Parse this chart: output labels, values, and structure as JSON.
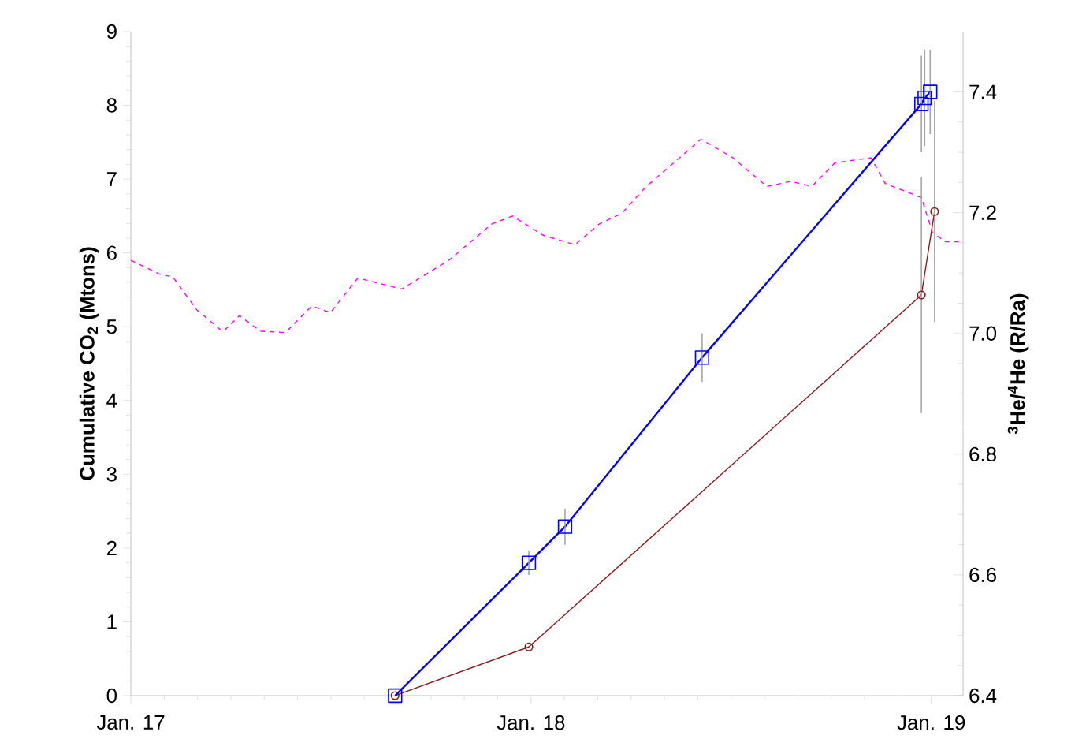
{
  "chart_data": {
    "type": "line",
    "ylabel": "Cumulative CO$_{2}$ (Mtons)",
    "y2label": "$^{3}$He/$^{4}$He (R/Ra)",
    "xlim": [
      "2017-01-01",
      "2019-01-30"
    ],
    "xticks": [
      {
        "value": "2017-01-01",
        "label": "Jan. 17"
      },
      {
        "value": "2018-01-01",
        "label": "Jan. 18"
      },
      {
        "value": "2019-01-01",
        "label": "Jan. 19"
      }
    ],
    "ylim": [
      0,
      9
    ],
    "yticks": [
      0,
      1,
      2,
      3,
      4,
      5,
      6,
      7,
      8,
      9
    ],
    "y2lim": [
      6.4,
      7.5
    ],
    "y2ticks": [
      6.4,
      6.6,
      6.8,
      {
        "value": 7.0,
        "label": "7.0"
      },
      7.2,
      7.4
    ],
    "grid": false,
    "series": [
      {
        "color": "#ff00ff",
        "line_style": "dashed",
        "marker": "none",
        "x": [
          "2017-01-01",
          "2017-01-29",
          "2017-02-08",
          "2017-03-02",
          "2017-03-26",
          "2017-04-10",
          "2017-04-29",
          "2017-05-22",
          "2017-06-15",
          "2017-07-02",
          "2017-07-27",
          "2017-09-05",
          "2017-10-18",
          "2017-11-26",
          "2017-12-15",
          "2018-01-12",
          "2018-02-10",
          "2018-03-04",
          "2018-03-25",
          "2018-04-16",
          "2018-06-05",
          "2018-07-04",
          "2018-08-04",
          "2018-08-26",
          "2018-09-14",
          "2018-10-05",
          "2018-11-07",
          "2018-11-20",
          "2018-12-23",
          "2019-01-02",
          "2019-01-14",
          "2019-01-30"
        ],
        "values": [
          5.9,
          5.7,
          5.68,
          5.23,
          4.93,
          5.15,
          4.94,
          4.92,
          5.28,
          5.19,
          5.66,
          5.51,
          5.9,
          6.39,
          6.5,
          6.24,
          6.11,
          6.39,
          6.54,
          6.9,
          7.54,
          7.29,
          6.9,
          6.97,
          6.9,
          7.22,
          7.29,
          6.94,
          6.75,
          6.28,
          6.15,
          6.15
        ]
      },
      {
        "color": "#8b1a1a",
        "line_style": "solid",
        "marker": "circle",
        "x": [
          "2017-08-30",
          "2017-12-30",
          "2018-12-23",
          "2019-01-04"
        ],
        "values": [
          0,
          0.66,
          5.43,
          6.56
        ],
        "errors": [
          null,
          null,
          1.6,
          1.5
        ]
      },
      {
        "color": "#0000ff",
        "line_style": "solid",
        "marker": "square",
        "axis": "y2",
        "x": [
          "2017-08-30",
          "2017-12-30",
          "2018-02-01",
          "2018-06-06",
          "2018-12-23",
          "2018-12-26",
          "2018-12-31"
        ],
        "values": [
          6.4,
          6.62,
          6.68,
          6.96,
          7.38,
          7.39,
          7.4
        ],
        "errors": [
          null,
          0.02,
          0.03,
          0.04,
          0.08,
          0.08,
          0.07
        ]
      }
    ]
  }
}
